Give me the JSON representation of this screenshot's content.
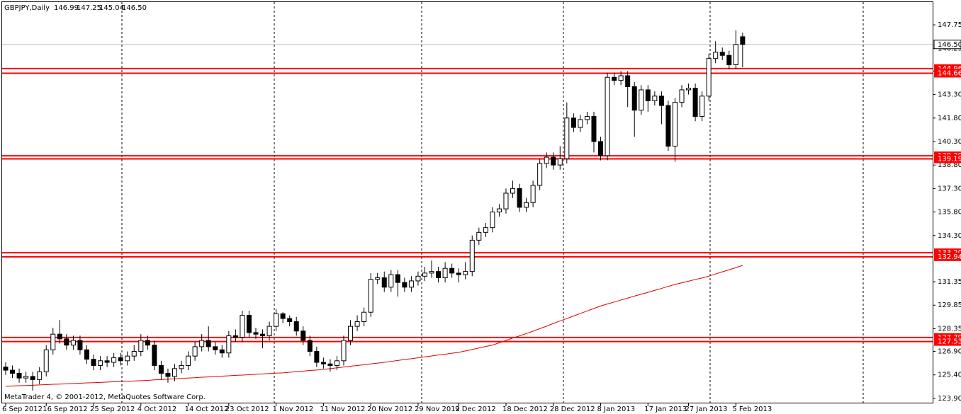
{
  "chart_data": {
    "type": "candlestick",
    "title": "GBPJPY,Daily",
    "footer": "MetaTrader 4, © 2001-2012, MetaQuotes Software Corp.",
    "categories": [
      "6 Sep 2012",
      null,
      null,
      null,
      null,
      null,
      "16 Sep 2012",
      null,
      null,
      null,
      null,
      null,
      null,
      "25 Sep 2012",
      null,
      null,
      null,
      null,
      null,
      null,
      "4 Oct 2012",
      null,
      null,
      null,
      null,
      null,
      null,
      "14 Oct 2012",
      null,
      null,
      null,
      null,
      null,
      "23 Oct 2012",
      null,
      null,
      null,
      null,
      null,
      null,
      "1 Nov 2012",
      null,
      null,
      null,
      null,
      null,
      null,
      "11 Nov 2012",
      null,
      null,
      null,
      null,
      null,
      null,
      "20 Nov 2012",
      null,
      null,
      null,
      null,
      null,
      null,
      "29 Nov 2012",
      null,
      null,
      null,
      null,
      null,
      "9 Dec 2012",
      null,
      null,
      null,
      null,
      null,
      null,
      "18 Dec 2012",
      null,
      null,
      null,
      null,
      null,
      null,
      "28 Dec 2012",
      null,
      null,
      null,
      null,
      null,
      null,
      "8 Jan 2013",
      null,
      null,
      null,
      null,
      null,
      null,
      "17 Jan 2013",
      null,
      null,
      null,
      null,
      null,
      "27 Jan 2013",
      null,
      null,
      null,
      null,
      null,
      null,
      "5 Feb 2013",
      null
    ],
    "candles": {
      "open": [
        125.9,
        125.7,
        125.5,
        125.2,
        125.3,
        125.1,
        125.6,
        127.0,
        128.0,
        127.7,
        127.3,
        127.6,
        127.0,
        126.4,
        126.0,
        126.3,
        126.2,
        126.5,
        126.3,
        126.6,
        126.9,
        127.6,
        127.3,
        126.0,
        125.5,
        125.3,
        125.8,
        126.0,
        126.6,
        127.2,
        127.6,
        127.2,
        127.0,
        126.8,
        127.9,
        127.8,
        129.2,
        128.1,
        128.0,
        127.9,
        128.5,
        129.3,
        129.0,
        128.8,
        128.2,
        127.6,
        126.9,
        126.2,
        126.1,
        126.0,
        126.3,
        127.6,
        128.5,
        128.8,
        129.4,
        131.5,
        131.6,
        131.0,
        131.8,
        131.3,
        131.0,
        131.4,
        131.7,
        131.9,
        132.0,
        131.6,
        132.2,
        131.9,
        131.8,
        132.0,
        134.0,
        134.5,
        134.8,
        135.8,
        136.0,
        137.0,
        137.3,
        136.1,
        136.4,
        137.5,
        138.9,
        139.3,
        138.8,
        139.2,
        141.8,
        141.2,
        141.7,
        141.9,
        140.3,
        139.4,
        144.4,
        144.2,
        144.5,
        143.8,
        142.3,
        143.6,
        142.9,
        143.2,
        142.6,
        140.0,
        142.8,
        143.6,
        143.7,
        141.9,
        143.2,
        145.6,
        146.0,
        145.8,
        145.2,
        146.99
      ],
      "high": [
        126.2,
        126.0,
        125.8,
        125.6,
        125.6,
        125.9,
        127.3,
        128.4,
        128.9,
        128.0,
        127.9,
        127.9,
        127.3,
        126.7,
        126.6,
        126.6,
        126.8,
        126.8,
        126.9,
        127.3,
        128.0,
        127.9,
        127.6,
        126.3,
        125.8,
        126.1,
        126.3,
        126.9,
        127.5,
        128.0,
        128.5,
        127.5,
        127.3,
        128.2,
        128.3,
        129.5,
        129.5,
        128.4,
        128.3,
        128.8,
        129.6,
        129.4,
        129.2,
        129.1,
        128.5,
        127.9,
        127.2,
        126.5,
        126.4,
        126.6,
        127.9,
        128.9,
        129.2,
        129.7,
        131.9,
        131.9,
        132.0,
        132.1,
        132.1,
        131.6,
        131.7,
        132.0,
        132.3,
        132.7,
        132.3,
        132.6,
        132.5,
        132.2,
        132.6,
        134.3,
        134.8,
        135.1,
        136.1,
        136.3,
        137.3,
        137.8,
        137.6,
        136.7,
        137.8,
        139.2,
        139.6,
        139.6,
        140.0,
        142.8,
        142.1,
        142.0,
        142.2,
        142.2,
        140.6,
        144.7,
        144.7,
        144.8,
        144.8,
        144.1,
        143.9,
        143.9,
        143.5,
        143.5,
        142.9,
        143.1,
        143.9,
        144.0,
        144.0,
        143.5,
        145.9,
        146.7,
        146.3,
        146.1,
        147.4,
        147.25
      ],
      "low": [
        125.4,
        125.2,
        124.9,
        124.9,
        124.4,
        124.8,
        125.3,
        126.7,
        127.4,
        127.0,
        127.0,
        126.7,
        126.1,
        125.7,
        125.7,
        125.9,
        125.9,
        126.0,
        126.0,
        126.3,
        126.6,
        127.0,
        125.7,
        125.1,
        124.9,
        125.0,
        125.5,
        125.7,
        126.3,
        126.9,
        126.9,
        126.7,
        126.5,
        126.5,
        127.5,
        127.5,
        127.8,
        127.7,
        127.1,
        127.6,
        128.2,
        128.7,
        128.5,
        127.9,
        127.3,
        126.6,
        125.9,
        125.8,
        125.6,
        125.7,
        126.0,
        127.3,
        128.2,
        128.5,
        129.1,
        131.2,
        130.7,
        130.7,
        130.4,
        130.7,
        130.7,
        131.1,
        131.4,
        131.6,
        131.3,
        131.3,
        131.6,
        131.3,
        131.5,
        131.7,
        133.7,
        134.2,
        134.5,
        135.5,
        135.7,
        136.7,
        135.8,
        135.8,
        136.1,
        137.2,
        138.6,
        138.5,
        138.5,
        138.9,
        140.9,
        140.9,
        141.4,
        139.6,
        139.1,
        139.1,
        143.9,
        143.9,
        142.5,
        140.6,
        142.0,
        142.2,
        142.6,
        141.4,
        139.7,
        139.0,
        142.5,
        143.3,
        141.6,
        141.6,
        142.9,
        145.3,
        145.5,
        144.9,
        144.9,
        145.04
      ],
      "close": [
        125.7,
        125.5,
        125.2,
        125.3,
        125.1,
        125.6,
        127.0,
        128.0,
        127.7,
        127.3,
        127.6,
        127.0,
        126.4,
        126.0,
        126.3,
        126.2,
        126.5,
        126.3,
        126.6,
        126.9,
        127.6,
        127.3,
        126.0,
        125.5,
        125.3,
        125.8,
        126.0,
        126.6,
        127.2,
        127.6,
        127.2,
        127.0,
        126.8,
        127.9,
        127.8,
        129.2,
        128.1,
        128.0,
        127.9,
        128.5,
        129.3,
        129.0,
        128.8,
        128.2,
        127.6,
        126.9,
        126.2,
        126.1,
        126.0,
        126.3,
        127.6,
        128.5,
        128.8,
        129.4,
        131.5,
        131.6,
        131.0,
        131.8,
        131.3,
        131.0,
        131.4,
        131.7,
        131.9,
        132.0,
        131.6,
        132.2,
        131.9,
        131.8,
        132.0,
        134.0,
        134.5,
        134.8,
        135.8,
        136.0,
        137.0,
        137.3,
        136.1,
        136.4,
        137.5,
        138.9,
        139.3,
        138.8,
        139.2,
        141.8,
        141.2,
        141.7,
        141.9,
        140.3,
        139.4,
        144.4,
        144.2,
        144.5,
        143.8,
        142.3,
        143.6,
        142.9,
        143.2,
        142.6,
        140.0,
        142.8,
        143.6,
        143.7,
        141.9,
        143.2,
        145.6,
        146.0,
        145.8,
        145.2,
        146.5,
        146.5
      ]
    },
    "ma": {
      "color": "#e00000",
      "values": [
        124.67,
        124.69,
        124.71,
        124.72,
        124.74,
        124.76,
        124.78,
        124.8,
        124.81,
        124.83,
        124.85,
        124.87,
        124.89,
        124.9,
        124.92,
        124.94,
        124.96,
        124.98,
        124.99,
        125.01,
        125.03,
        125.05,
        125.08,
        125.1,
        125.13,
        125.15,
        125.17,
        125.2,
        125.22,
        125.25,
        125.27,
        125.29,
        125.32,
        125.34,
        125.37,
        125.39,
        125.41,
        125.44,
        125.46,
        125.49,
        125.51,
        125.53,
        125.57,
        125.61,
        125.64,
        125.68,
        125.71,
        125.75,
        125.8,
        125.85,
        125.9,
        125.95,
        126.0,
        126.05,
        126.1,
        126.15,
        126.2,
        126.26,
        126.32,
        126.38,
        126.43,
        126.49,
        126.55,
        126.61,
        126.67,
        126.72,
        126.78,
        126.84,
        126.93,
        127.02,
        127.12,
        127.21,
        127.3,
        127.45,
        127.6,
        127.75,
        127.89,
        128.04,
        128.19,
        128.35,
        128.51,
        128.68,
        128.84,
        129.0,
        129.16,
        129.32,
        129.48,
        129.64,
        129.8,
        129.93,
        130.05,
        130.18,
        130.3,
        130.43,
        130.55,
        130.67,
        130.8,
        130.92,
        131.05,
        131.17,
        131.28,
        131.38,
        131.49,
        131.59,
        131.7,
        131.84,
        131.98,
        132.11,
        132.25,
        132.39
      ]
    },
    "levels": {
      "color": "#ff0000",
      "values": [
        144.96,
        144.66,
        139.39,
        139.19,
        133.2,
        132.94,
        127.79,
        127.53
      ],
      "value_labels": [
        "144.96",
        "144.66",
        "139.39",
        "139.19",
        "133.20",
        "132.94",
        "127.79",
        "127.53"
      ]
    },
    "last_price": {
      "value": 146.5,
      "label": "146.50"
    },
    "ylim": [
      123.58,
      149.2
    ],
    "yticks": [
      147.75,
      146.25,
      {
        "value": 144.8,
        "label": "144.80"
      },
      {
        "value": 143.3,
        "label": "143.30"
      },
      {
        "value": 141.8,
        "label": "141.80"
      },
      {
        "value": 140.3,
        "label": "140.30"
      },
      {
        "value": 138.8,
        "label": "138.80"
      },
      {
        "value": 137.3,
        "label": "137.30"
      },
      {
        "value": 135.8,
        "label": "135.80"
      },
      {
        "value": 134.3,
        "label": "134.30"
      },
      131.35,
      129.85,
      128.35,
      {
        "value": 126.9,
        "label": "126.90"
      },
      {
        "value": 125.4,
        "label": "125.40"
      },
      {
        "value": 123.9,
        "label": "123.90"
      }
    ]
  }
}
